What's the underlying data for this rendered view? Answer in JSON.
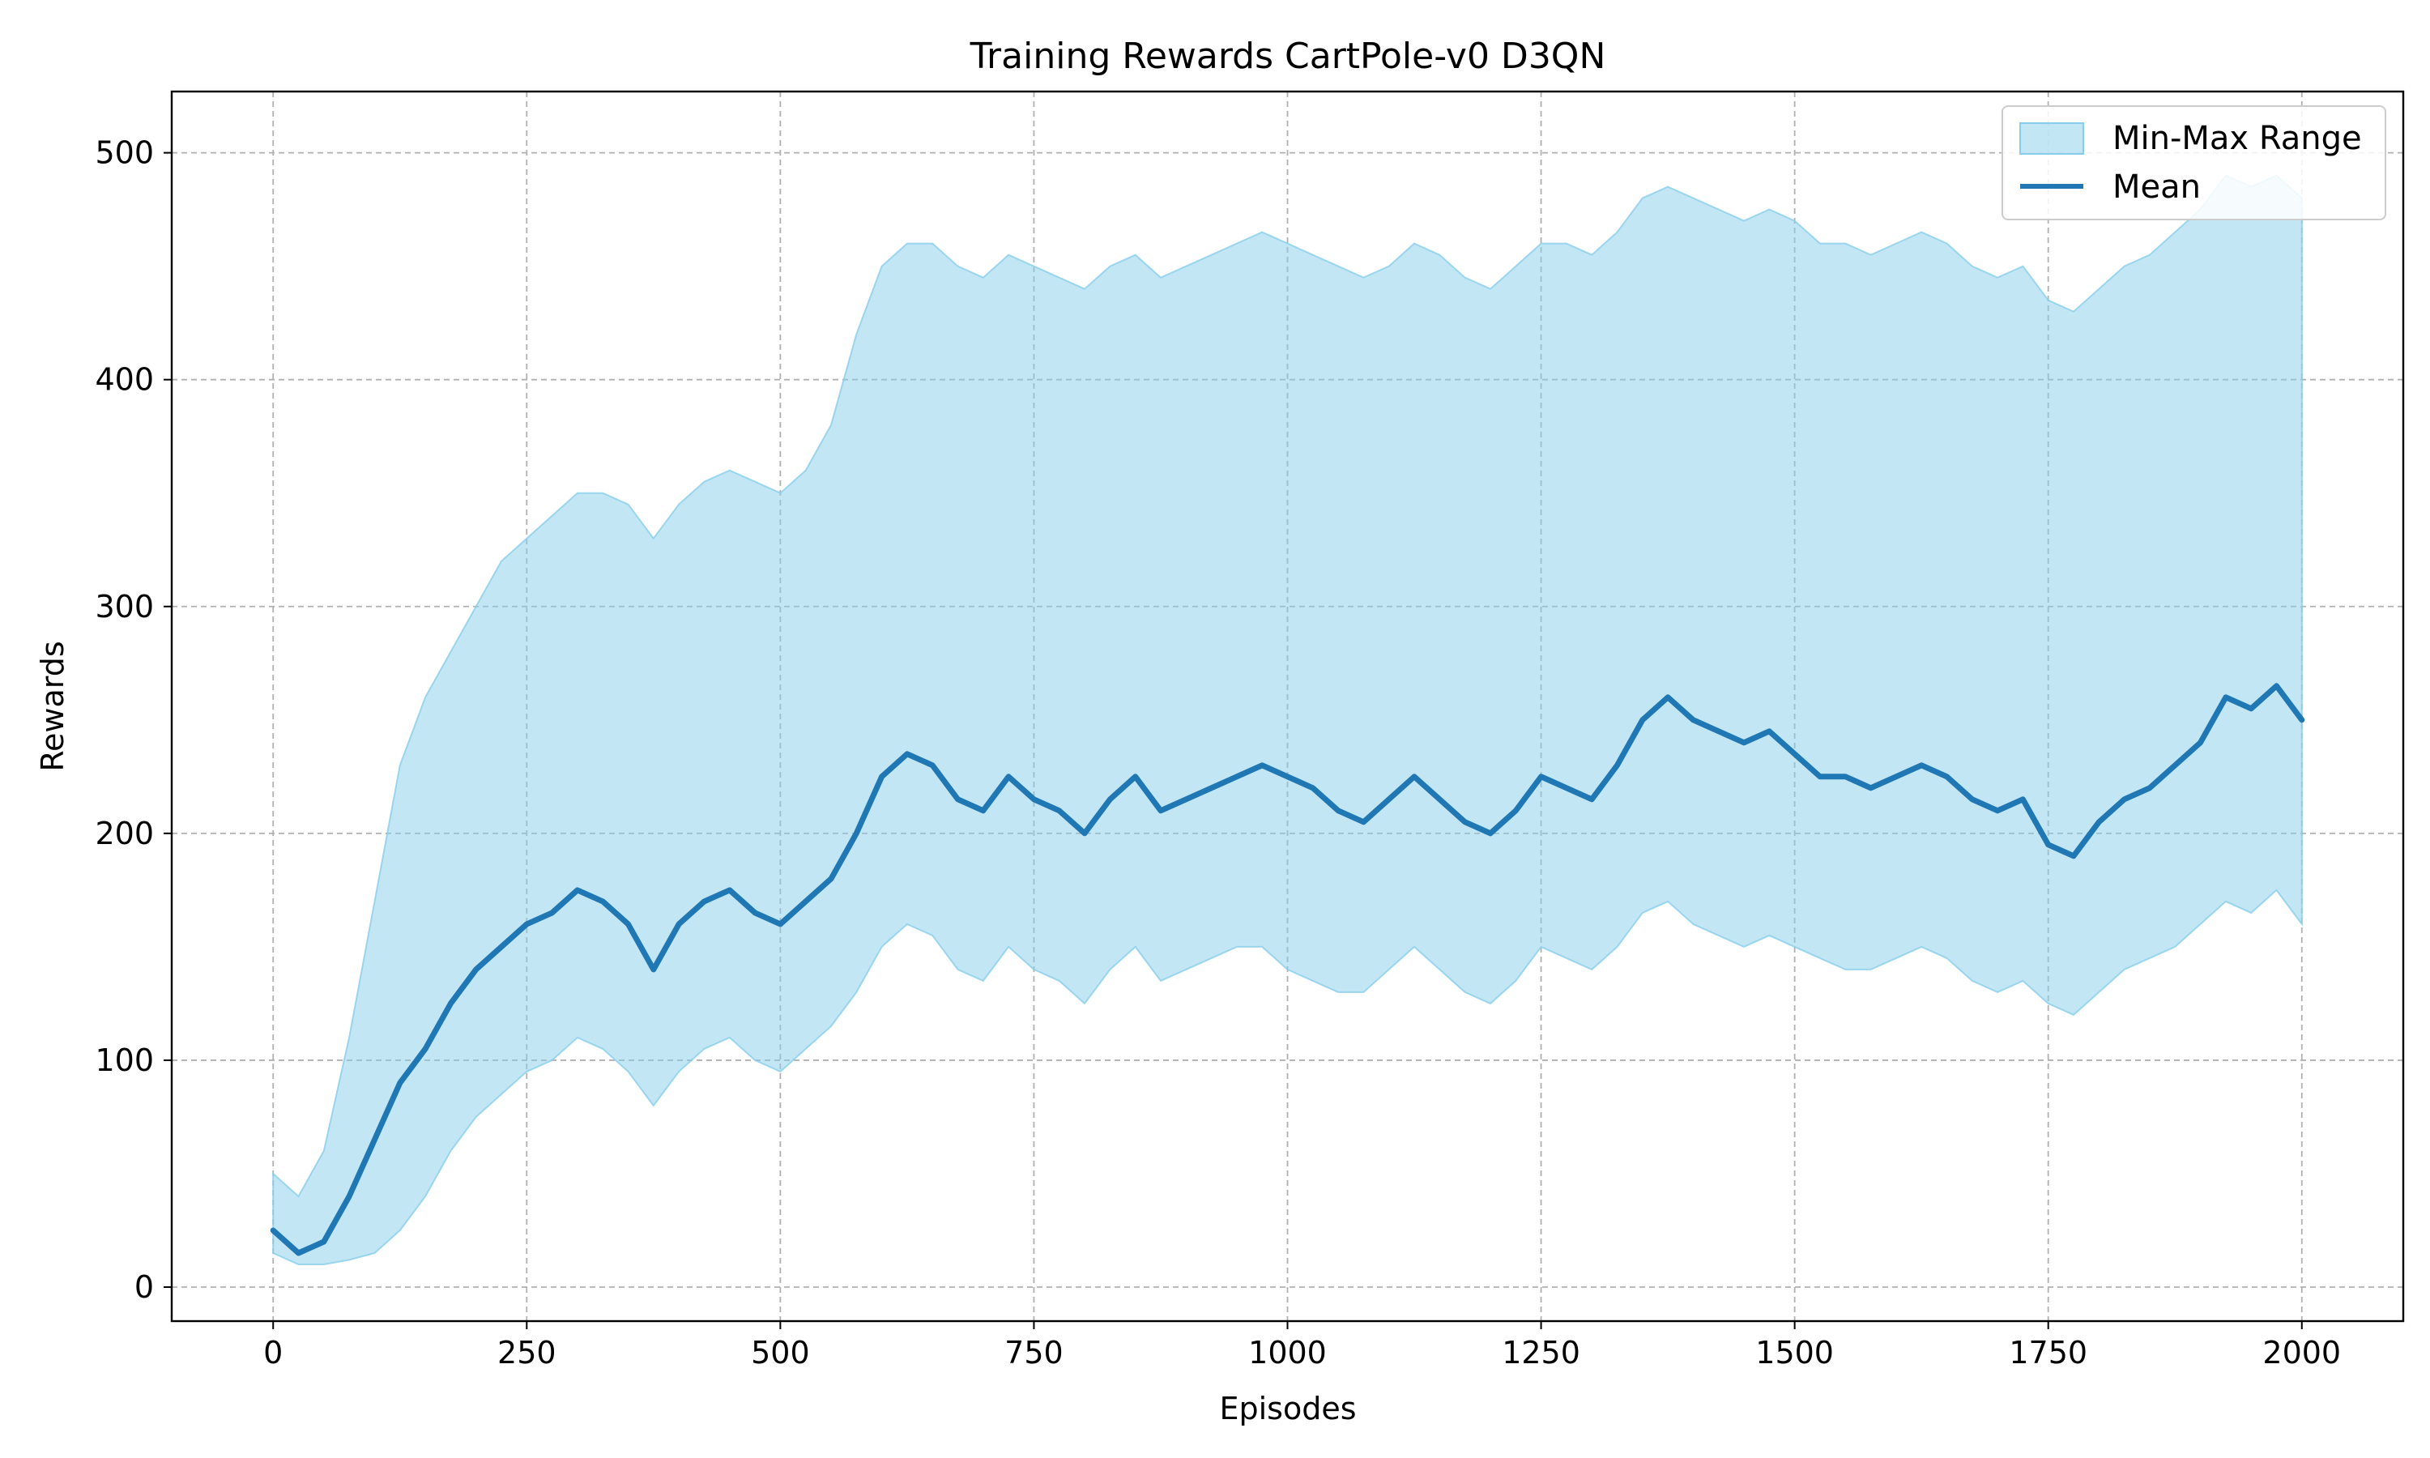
{
  "chart_data": {
    "type": "line",
    "title": "Training Rewards CartPole-v0 D3QN",
    "xlabel": "Episodes",
    "ylabel": "Rewards",
    "xlim": [
      -100,
      2100
    ],
    "ylim": [
      -15,
      527
    ],
    "xticks": [
      0,
      250,
      500,
      750,
      1000,
      1250,
      1500,
      1750,
      2000
    ],
    "yticks": [
      0,
      100,
      200,
      300,
      400,
      500
    ],
    "grid": true,
    "legend": {
      "placement": "top-right",
      "entries": [
        {
          "label": "Min-Max Range",
          "kind": "band",
          "color": "#87ceeb"
        },
        {
          "label": "Mean",
          "kind": "line",
          "color": "#1f77b4"
        }
      ]
    },
    "series": [
      {
        "name": "Mean",
        "kind": "line",
        "color": "#1f77b4",
        "x": [
          0,
          25,
          50,
          75,
          100,
          125,
          150,
          175,
          200,
          225,
          250,
          275,
          300,
          325,
          350,
          375,
          400,
          425,
          450,
          475,
          500,
          525,
          550,
          575,
          600,
          625,
          650,
          675,
          700,
          725,
          750,
          775,
          800,
          825,
          850,
          875,
          900,
          925,
          950,
          975,
          1000,
          1025,
          1050,
          1075,
          1100,
          1125,
          1150,
          1175,
          1200,
          1225,
          1250,
          1275,
          1300,
          1325,
          1350,
          1375,
          1400,
          1425,
          1450,
          1475,
          1500,
          1525,
          1550,
          1575,
          1600,
          1625,
          1650,
          1675,
          1700,
          1725,
          1750,
          1775,
          1800,
          1825,
          1850,
          1875,
          1900,
          1925,
          1950,
          1975,
          2000
        ],
        "y": [
          25,
          15,
          20,
          40,
          65,
          90,
          105,
          125,
          140,
          150,
          160,
          165,
          175,
          170,
          160,
          140,
          160,
          170,
          175,
          165,
          160,
          170,
          180,
          200,
          225,
          235,
          230,
          215,
          210,
          225,
          215,
          210,
          200,
          215,
          225,
          210,
          215,
          220,
          225,
          230,
          225,
          220,
          210,
          205,
          215,
          225,
          215,
          205,
          200,
          210,
          225,
          220,
          215,
          230,
          250,
          260,
          250,
          245,
          240,
          245,
          235,
          225,
          225,
          220,
          225,
          230,
          225,
          215,
          210,
          215,
          195,
          190,
          205,
          215,
          220,
          230,
          240,
          260,
          255,
          265,
          250
        ]
      },
      {
        "name": "Min-Max Range",
        "kind": "band",
        "color": "#87ceeb",
        "x": [
          0,
          25,
          50,
          75,
          100,
          125,
          150,
          175,
          200,
          225,
          250,
          275,
          300,
          325,
          350,
          375,
          400,
          425,
          450,
          475,
          500,
          525,
          550,
          575,
          600,
          625,
          650,
          675,
          700,
          725,
          750,
          775,
          800,
          825,
          850,
          875,
          900,
          925,
          950,
          975,
          1000,
          1025,
          1050,
          1075,
          1100,
          1125,
          1150,
          1175,
          1200,
          1225,
          1250,
          1275,
          1300,
          1325,
          1350,
          1375,
          1400,
          1425,
          1450,
          1475,
          1500,
          1525,
          1550,
          1575,
          1600,
          1625,
          1650,
          1675,
          1700,
          1725,
          1750,
          1775,
          1800,
          1825,
          1850,
          1875,
          1900,
          1925,
          1950,
          1975,
          2000
        ],
        "y_min": [
          15,
          10,
          10,
          12,
          15,
          25,
          40,
          60,
          75,
          85,
          95,
          100,
          110,
          105,
          95,
          80,
          95,
          105,
          110,
          100,
          95,
          105,
          115,
          130,
          150,
          160,
          155,
          140,
          135,
          150,
          140,
          135,
          125,
          140,
          150,
          135,
          140,
          145,
          150,
          150,
          140,
          135,
          130,
          130,
          140,
          150,
          140,
          130,
          125,
          135,
          150,
          145,
          140,
          150,
          165,
          170,
          160,
          155,
          150,
          155,
          150,
          145,
          140,
          140,
          145,
          150,
          145,
          135,
          130,
          135,
          125,
          120,
          130,
          140,
          145,
          150,
          160,
          170,
          165,
          175,
          160
        ],
        "y_max": [
          50,
          40,
          60,
          110,
          170,
          230,
          260,
          280,
          300,
          320,
          330,
          340,
          350,
          350,
          345,
          330,
          345,
          355,
          360,
          355,
          350,
          360,
          380,
          420,
          450,
          460,
          460,
          450,
          445,
          455,
          450,
          445,
          440,
          450,
          455,
          445,
          450,
          455,
          460,
          465,
          460,
          455,
          450,
          445,
          450,
          460,
          455,
          445,
          440,
          450,
          460,
          460,
          455,
          465,
          480,
          485,
          480,
          475,
          470,
          475,
          470,
          460,
          460,
          455,
          460,
          465,
          460,
          450,
          445,
          450,
          435,
          430,
          440,
          450,
          455,
          465,
          475,
          490,
          485,
          490,
          480
        ]
      }
    ]
  }
}
